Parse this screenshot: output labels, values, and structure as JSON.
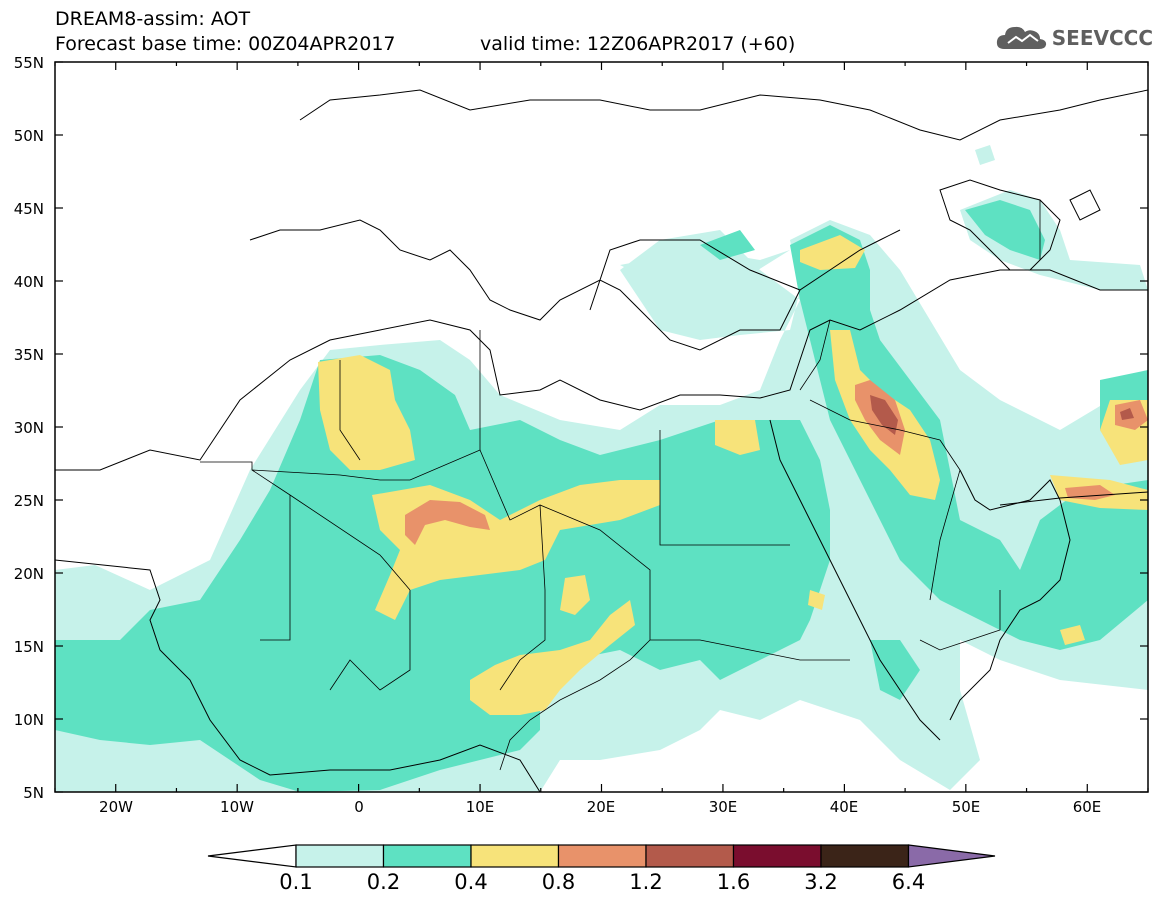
{
  "header": {
    "line1": "DREAM8-assim: AOT",
    "line2": "Forecast base time: 00Z04APR2017",
    "line3": "valid time: 12Z06APR2017 (+60)",
    "logo_text": "SEEVCCC",
    "logo_icon": "cloud-icon"
  },
  "map": {
    "lat_labels": [
      "55N",
      "50N",
      "45N",
      "40N",
      "35N",
      "30N",
      "25N",
      "20N",
      "15N",
      "10N",
      "5N"
    ],
    "lon_labels": [
      "20W",
      "10W",
      "0",
      "10E",
      "20E",
      "30E",
      "40E",
      "50E",
      "60E"
    ],
    "lat_range": [
      5,
      55
    ],
    "lon_range": [
      -25,
      65
    ],
    "variable": "AOT"
  },
  "colorbar": {
    "labels": [
      "0.1",
      "0.2",
      "0.4",
      "0.8",
      "1.2",
      "1.6",
      "3.2",
      "6.4"
    ],
    "colors": [
      "#ffffff",
      "#c6f2ea",
      "#5ee1c2",
      "#f7e37a",
      "#e8926a",
      "#b35a4b",
      "#7a0d2e",
      "#3b2418",
      "#8a6aa8"
    ],
    "color_names": [
      "below-0.1",
      "0.1-0.2",
      "0.2-0.4",
      "0.4-0.8",
      "0.8-1.2",
      "1.2-1.6",
      "1.6-3.2",
      "3.2-6.4",
      "above-6.4"
    ]
  }
}
